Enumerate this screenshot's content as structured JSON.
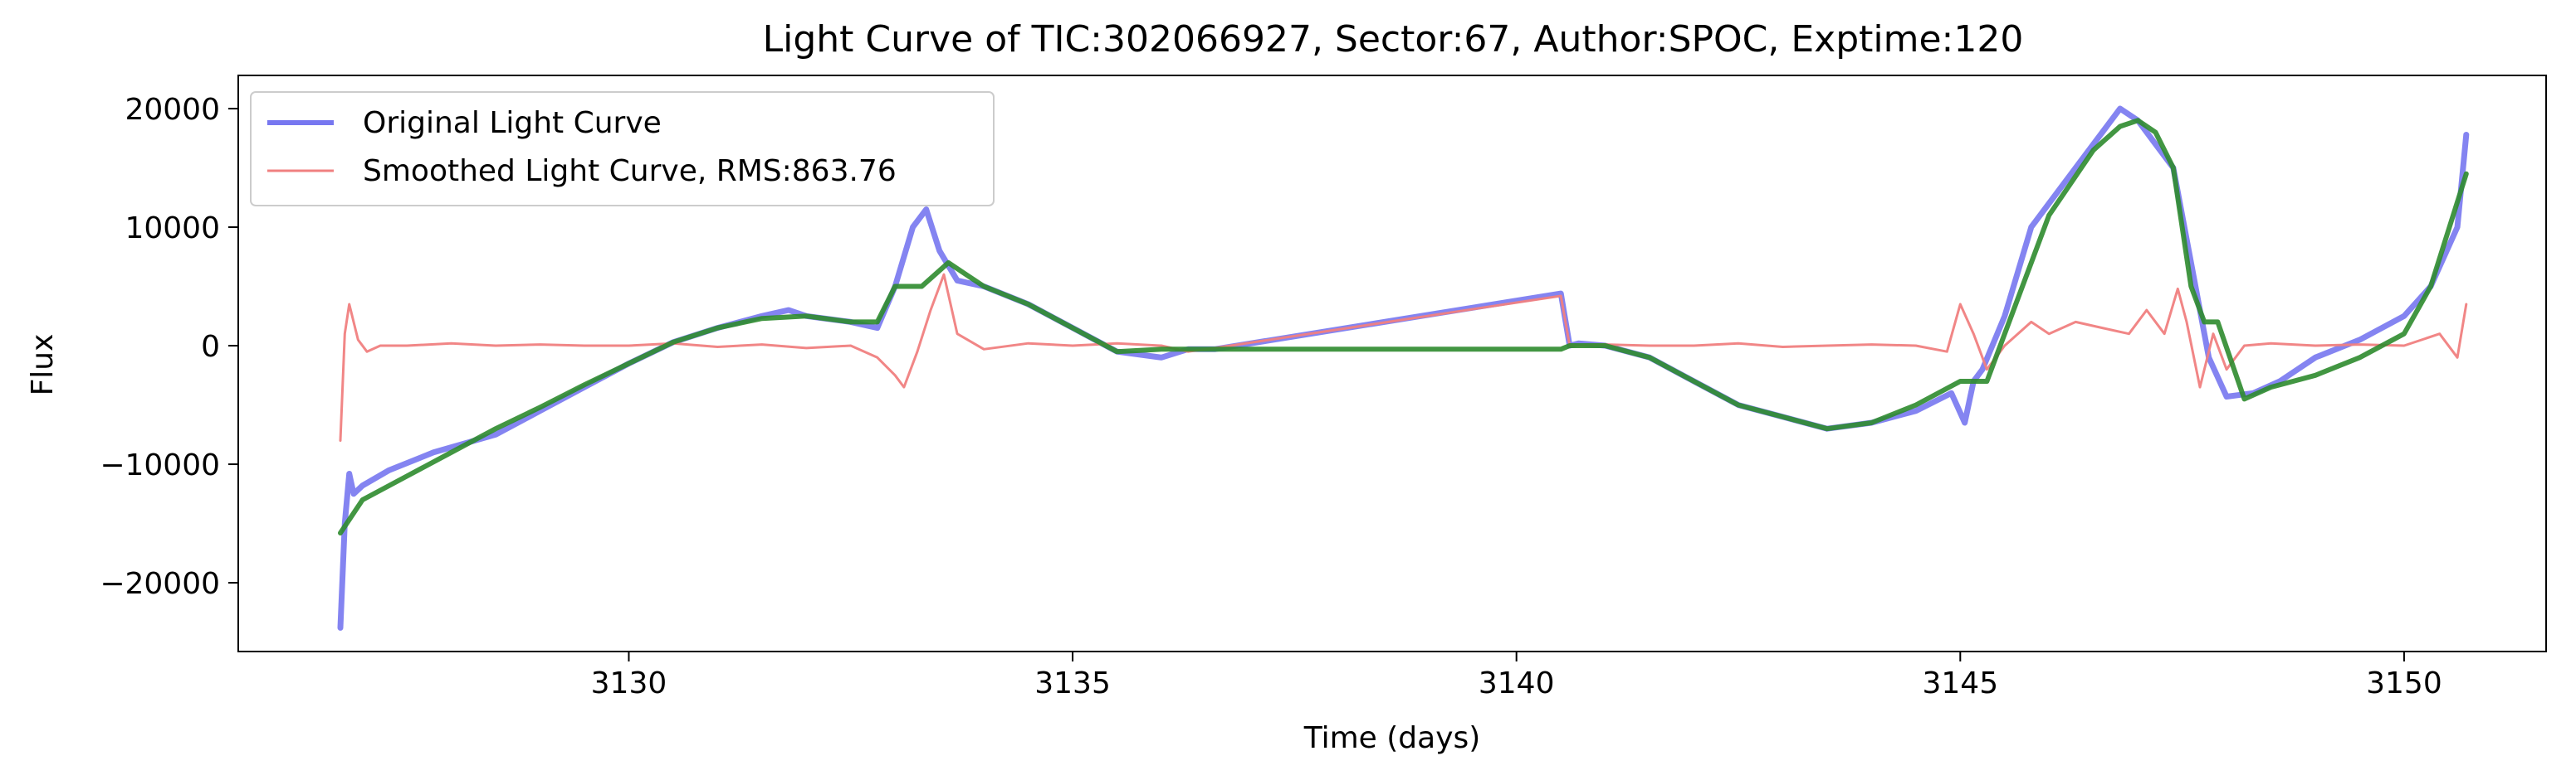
{
  "chart_data": {
    "type": "line",
    "title": "Light Curve of TIC:302066927, Sector:67, Author:SPOC, Exptime:120",
    "xlabel": "Time (days)",
    "ylabel": "Flux",
    "xlim": [
      3125.6,
      3151.6
    ],
    "ylim": [
      -25800,
      22800
    ],
    "xticks": [
      3130,
      3135,
      3140,
      3145,
      3150
    ],
    "xtick_labels": [
      "3130",
      "3135",
      "3140",
      "3145",
      "3150"
    ],
    "yticks": [
      -20000,
      -10000,
      0,
      10000,
      20000
    ],
    "ytick_labels": [
      "−20000",
      "−10000",
      "0",
      "10000",
      "20000"
    ],
    "grid": false,
    "legend_position": "upper-left",
    "legend": [
      {
        "label": "Original Light Curve",
        "color": "#7777f0"
      },
      {
        "label": "Smoothed Light Curve, RMS:863.76",
        "color": "#f08080"
      }
    ],
    "series": [
      {
        "name": "Original Light Curve",
        "color": "#7777f0",
        "x": [
          3126.75,
          3126.8,
          3126.85,
          3126.9,
          3127.0,
          3127.3,
          3127.8,
          3128.5,
          3129.0,
          3129.5,
          3130.0,
          3130.5,
          3131.0,
          3131.5,
          3131.8,
          3132.0,
          3132.5,
          3132.8,
          3133.0,
          3133.2,
          3133.35,
          3133.5,
          3133.7,
          3134.0,
          3134.5,
          3135.0,
          3135.5,
          3136.0,
          3136.3,
          3136.6,
          3140.5,
          3140.6,
          3140.7,
          3141.0,
          3141.5,
          3142.0,
          3142.5,
          3143.0,
          3143.5,
          3144.0,
          3144.5,
          3144.9,
          3145.05,
          3145.15,
          3145.25,
          3145.5,
          3145.8,
          3146.0,
          3146.5,
          3146.8,
          3147.0,
          3147.2,
          3147.4,
          3147.6,
          3147.8,
          3148.0,
          3148.3,
          3148.6,
          3149.0,
          3149.5,
          3150.0,
          3150.3,
          3150.6,
          3150.7
        ],
        "y": [
          -23800,
          -15000,
          -10800,
          -12500,
          -11800,
          -10500,
          -9000,
          -7500,
          -5500,
          -3500,
          -1500,
          300,
          1500,
          2500,
          3000,
          2500,
          2000,
          1500,
          5000,
          10000,
          11500,
          8000,
          5500,
          5000,
          3500,
          1500,
          -500,
          -1000,
          -300,
          -300,
          4400,
          0,
          200,
          0,
          -1000,
          -3000,
          -5000,
          -6000,
          -7000,
          -6500,
          -5500,
          -4000,
          -6500,
          -3000,
          -2000,
          2500,
          10000,
          12000,
          17000,
          20000,
          19000,
          17000,
          15000,
          7000,
          -1000,
          -4300,
          -4000,
          -3000,
          -1000,
          500,
          2500,
          5000,
          10000,
          17800
        ]
      },
      {
        "name": "Smoothed Light Curve, RMS:863.76",
        "color": "#f08080",
        "x": [
          3126.75,
          3126.8,
          3126.85,
          3126.95,
          3127.05,
          3127.2,
          3127.5,
          3128.0,
          3128.5,
          3129.0,
          3129.5,
          3130.0,
          3130.5,
          3131.0,
          3131.5,
          3132.0,
          3132.5,
          3132.8,
          3133.0,
          3133.1,
          3133.25,
          3133.4,
          3133.55,
          3133.7,
          3134.0,
          3134.5,
          3135.0,
          3135.5,
          3136.0,
          3136.3,
          3136.6,
          3140.5,
          3140.6,
          3141.0,
          3141.5,
          3142.0,
          3142.5,
          3143.0,
          3143.5,
          3144.0,
          3144.5,
          3144.85,
          3145.0,
          3145.15,
          3145.3,
          3145.5,
          3145.8,
          3146.0,
          3146.3,
          3146.6,
          3146.9,
          3147.1,
          3147.3,
          3147.45,
          3147.55,
          3147.7,
          3147.85,
          3148.0,
          3148.2,
          3148.5,
          3149.0,
          3149.5,
          3150.0,
          3150.4,
          3150.6,
          3150.7
        ],
        "y": [
          -8000,
          1000,
          3500,
          500,
          -500,
          0,
          0,
          200,
          0,
          100,
          0,
          0,
          200,
          -100,
          100,
          -200,
          0,
          -1000,
          -2500,
          -3500,
          -500,
          3000,
          6000,
          1000,
          -300,
          200,
          0,
          200,
          0,
          -500,
          -200,
          4200,
          0,
          100,
          0,
          0,
          200,
          -100,
          0,
          100,
          0,
          -500,
          3500,
          1000,
          -2000,
          0,
          2000,
          1000,
          2000,
          1500,
          1000,
          3000,
          1000,
          4800,
          2000,
          -3500,
          1000,
          -2000,
          0,
          200,
          0,
          100,
          0,
          1000,
          -1000,
          3500
        ]
      },
      {
        "name": "",
        "color": "#2e8b2e",
        "x": [
          3126.75,
          3127.0,
          3127.5,
          3128.0,
          3128.5,
          3129.0,
          3129.5,
          3130.0,
          3130.5,
          3131.0,
          3131.5,
          3132.0,
          3132.5,
          3132.8,
          3133.0,
          3133.3,
          3133.6,
          3133.8,
          3134.0,
          3134.5,
          3135.0,
          3135.5,
          3136.0,
          3136.3,
          3136.6,
          3140.5,
          3140.6,
          3141.0,
          3141.5,
          3142.0,
          3142.5,
          3143.0,
          3143.5,
          3144.0,
          3144.5,
          3145.0,
          3145.3,
          3145.6,
          3146.0,
          3146.5,
          3146.8,
          3147.0,
          3147.2,
          3147.4,
          3147.6,
          3147.75,
          3147.9,
          3148.2,
          3148.5,
          3149.0,
          3149.5,
          3150.0,
          3150.3,
          3150.7
        ],
        "y": [
          -15800,
          -13000,
          -11000,
          -9000,
          -7000,
          -5200,
          -3300,
          -1500,
          300,
          1500,
          2300,
          2500,
          2000,
          2000,
          5000,
          5000,
          7000,
          6000,
          5000,
          3500,
          1500,
          -500,
          -300,
          -300,
          -300,
          -300,
          0,
          0,
          -1000,
          -3000,
          -5000,
          -6000,
          -7000,
          -6500,
          -5000,
          -3000,
          -3000,
          3000,
          11000,
          16500,
          18500,
          19000,
          18000,
          15000,
          5000,
          2000,
          2000,
          -4500,
          -3500,
          -2500,
          -1000,
          1000,
          5000,
          14500
        ]
      }
    ]
  }
}
